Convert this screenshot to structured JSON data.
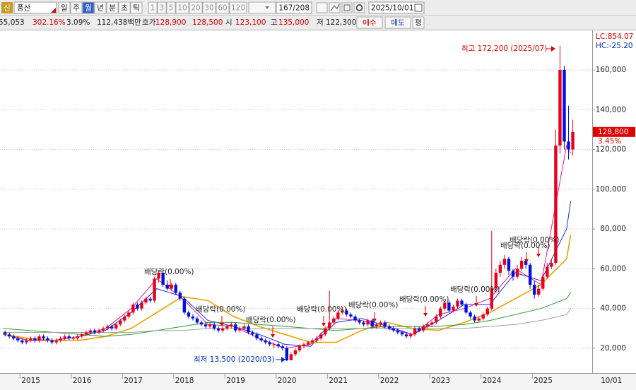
{
  "toolbar": {
    "badge": "신",
    "symbol": "풍산",
    "periods": [
      "일",
      "주",
      "월",
      "년",
      "분",
      "초",
      "틱"
    ],
    "selected_period": "월",
    "intervals": [
      "1",
      "3",
      "5",
      "10",
      "20",
      "30",
      "60",
      "120"
    ],
    "count": "167/208",
    "date": "2025/10/01"
  },
  "quote": {
    "volume": "55,053",
    "change_ratio": "302.16%",
    "turnover_rate": "3.09%",
    "amount": "112,438백만",
    "ask_label": "호가",
    "ask": "128,900",
    "bid": "128,500",
    "open_label": "시",
    "open": "123,100",
    "high_label": "고",
    "high": "135,000",
    "low_label": "저",
    "low": "122,300",
    "buy": "매수",
    "sell": "매도",
    "avg": "평"
  },
  "chart_data": {
    "type": "candlestick",
    "up_color": "#e8001c",
    "down_color": "#0010e0",
    "candles": {
      "open": [
        28000,
        27000,
        26000,
        25000,
        24000,
        23000,
        24000,
        25000,
        24000,
        26000,
        25000,
        24000,
        23000,
        24000,
        25000,
        26000,
        25000,
        25000,
        26000,
        27000,
        28000,
        29000,
        28000,
        29000,
        30000,
        31000,
        30000,
        32000,
        34000,
        36000,
        38000,
        42000,
        40000,
        43000,
        45000,
        44000,
        55000,
        58000,
        52000,
        50000,
        52000,
        48000,
        45000,
        38000,
        36000,
        35000,
        33000,
        32000,
        31000,
        32000,
        30000,
        29000,
        30000,
        31000,
        32000,
        29000,
        30000,
        31000,
        28000,
        27000,
        25000,
        24000,
        23000,
        22000,
        22000,
        21000,
        20000,
        14000,
        17000,
        19000,
        21000,
        22000,
        23000,
        24000,
        25000,
        27000,
        30000,
        33000,
        35000,
        38000,
        39000,
        37000,
        36000,
        34000,
        33000,
        32000,
        34000,
        31000,
        32000,
        33000,
        31000,
        30000,
        29000,
        28000,
        27000,
        26000,
        27000,
        30000,
        29000,
        31000,
        32000,
        33000,
        36000,
        40000,
        43000,
        39000,
        41000,
        44000,
        42000,
        38000,
        36000,
        34000,
        35000,
        37000,
        40000,
        50000,
        58000,
        62000,
        65000,
        59000,
        56000,
        60000,
        64000,
        62000,
        52000,
        47000,
        50000,
        56000,
        61000,
        63000,
        122000,
        160000,
        124000,
        120000
      ],
      "high": [
        29000,
        28000,
        27000,
        26000,
        25000,
        25000,
        26000,
        26000,
        27000,
        27000,
        26000,
        25000,
        25000,
        26000,
        27000,
        27000,
        26000,
        27000,
        28000,
        29000,
        30000,
        30000,
        30000,
        31000,
        32000,
        32000,
        33000,
        35000,
        37000,
        39000,
        43000,
        43000,
        44000,
        46000,
        46000,
        56000,
        59000,
        59000,
        54000,
        53000,
        53000,
        49000,
        46000,
        39000,
        37000,
        36000,
        34000,
        33000,
        33000,
        33000,
        31000,
        31000,
        32000,
        33000,
        33000,
        31000,
        32000,
        32000,
        29000,
        28000,
        26000,
        25000,
        24000,
        23000,
        23000,
        22000,
        21000,
        18000,
        20000,
        22000,
        23000,
        24000,
        25000,
        26000,
        28000,
        31000,
        49000,
        36000,
        39000,
        41000,
        40000,
        38000,
        37000,
        35000,
        34000,
        35000,
        35000,
        33000,
        34000,
        34000,
        32000,
        31000,
        30000,
        29000,
        28000,
        28000,
        31000,
        31000,
        32000,
        33000,
        34000,
        37000,
        41000,
        44000,
        44000,
        42000,
        45000,
        45000,
        43000,
        39000,
        37000,
        36000,
        38000,
        41000,
        79000,
        60000,
        64000,
        67000,
        66000,
        60000,
        62000,
        66000,
        65000,
        63000,
        54000,
        52000,
        58000,
        63000,
        65000,
        130000,
        172200,
        162000,
        142000,
        135000
      ],
      "low": [
        26000,
        25000,
        24000,
        23000,
        22000,
        22000,
        23000,
        23000,
        23000,
        24000,
        23000,
        22000,
        22000,
        23000,
        24000,
        24000,
        24000,
        24000,
        25000,
        26000,
        27000,
        27000,
        27000,
        28000,
        29000,
        29000,
        29000,
        31000,
        33000,
        35000,
        37000,
        39000,
        39000,
        42000,
        43000,
        43000,
        53000,
        51000,
        49000,
        49000,
        47000,
        44000,
        37000,
        35000,
        34000,
        32000,
        31000,
        30000,
        30000,
        29000,
        28000,
        28000,
        29000,
        30000,
        28000,
        28000,
        29000,
        27000,
        26000,
        24000,
        23000,
        22000,
        21000,
        20000,
        20000,
        19000,
        13500,
        14000,
        16000,
        18000,
        20000,
        21000,
        22000,
        23000,
        24000,
        26000,
        29000,
        32000,
        34000,
        37000,
        36000,
        35000,
        33000,
        32000,
        31000,
        31000,
        30000,
        30000,
        31000,
        30000,
        29000,
        28000,
        27000,
        26000,
        25000,
        25000,
        26000,
        28000,
        28000,
        30000,
        31000,
        32000,
        35000,
        39000,
        38000,
        38000,
        40000,
        41000,
        37000,
        35000,
        33000,
        33000,
        34000,
        36000,
        39000,
        48000,
        56000,
        60000,
        57000,
        54000,
        55000,
        59000,
        60000,
        50000,
        45000,
        46000,
        49000,
        55000,
        60000,
        62000,
        118000,
        120000,
        115000,
        117000
      ],
      "close": [
        27000,
        26000,
        25000,
        24000,
        23000,
        24000,
        25000,
        24000,
        26000,
        25000,
        24000,
        23000,
        24000,
        25000,
        26000,
        25000,
        25000,
        26000,
        27000,
        28000,
        29000,
        28000,
        29000,
        30000,
        31000,
        30000,
        32000,
        34000,
        36000,
        38000,
        42000,
        40000,
        43000,
        45000,
        44000,
        55000,
        58000,
        52000,
        50000,
        52000,
        48000,
        45000,
        38000,
        36000,
        35000,
        33000,
        32000,
        31000,
        32000,
        30000,
        29000,
        30000,
        31000,
        32000,
        29000,
        30000,
        31000,
        28000,
        27000,
        25000,
        24000,
        23000,
        22000,
        22000,
        21000,
        20000,
        14000,
        17000,
        19000,
        21000,
        22000,
        23000,
        24000,
        25000,
        27000,
        30000,
        33000,
        35000,
        38000,
        39000,
        37000,
        36000,
        34000,
        33000,
        32000,
        34000,
        31000,
        32000,
        33000,
        31000,
        30000,
        29000,
        28000,
        27000,
        26000,
        27000,
        30000,
        29000,
        31000,
        32000,
        33000,
        36000,
        40000,
        43000,
        39000,
        41000,
        44000,
        42000,
        38000,
        36000,
        34000,
        35000,
        37000,
        40000,
        50000,
        58000,
        62000,
        65000,
        59000,
        56000,
        60000,
        64000,
        62000,
        52000,
        47000,
        50000,
        56000,
        61000,
        63000,
        122000,
        160000,
        124000,
        120000,
        128800
      ]
    },
    "moving_averages": {
      "x": [
        2014.67,
        2015.17,
        2015.67,
        2016.17,
        2016.67,
        2017.17,
        2017.67,
        2018.17,
        2018.67,
        2019.17,
        2019.67,
        2020.17,
        2020.67,
        2021.17,
        2021.67,
        2022.17,
        2022.67,
        2023.17,
        2023.67,
        2024.17,
        2024.67,
        2025.17,
        2025.67,
        2025.75
      ],
      "series": [
        {
          "color": "#1e2ee0",
          "values": [
            27000,
            24000,
            24000,
            26000,
            29000,
            38000,
            50000,
            46000,
            34000,
            31000,
            27000,
            22000,
            21000,
            33000,
            35000,
            31000,
            27000,
            34000,
            42000,
            42000,
            58000,
            54000,
            80000,
            94000
          ]
        },
        {
          "color": "#e0208c",
          "values": [
            27000,
            24000,
            24000,
            26000,
            30000,
            40000,
            55000,
            45000,
            32000,
            31000,
            25000,
            20000,
            22000,
            35000,
            34000,
            30000,
            27000,
            37000,
            40000,
            45000,
            60000,
            52000,
            122000,
            118000
          ]
        },
        {
          "color": "#f0a000",
          "values": [
            27000,
            25000,
            24000,
            24000,
            26000,
            30000,
            38000,
            46000,
            44000,
            36000,
            31000,
            27000,
            23000,
            23000,
            29000,
            33000,
            30000,
            29000,
            33000,
            38000,
            45000,
            52000,
            65000,
            77000
          ]
        },
        {
          "color": "#2c9a2c",
          "values": [
            30000,
            29000,
            28000,
            27000,
            26000,
            27000,
            29000,
            31000,
            33000,
            33000,
            32000,
            31000,
            30000,
            29000,
            30000,
            31000,
            31000,
            31000,
            32000,
            34000,
            37000,
            40000,
            45000,
            48000
          ]
        },
        {
          "color": "#a0a0a0",
          "values": [
            28000,
            28000,
            28000,
            28000,
            28000,
            28000,
            29000,
            29000,
            30000,
            30000,
            30000,
            30000,
            30000,
            30000,
            30000,
            30000,
            30000,
            30000,
            30000,
            31000,
            32000,
            34000,
            37000,
            40000
          ]
        }
      ]
    },
    "xlim": [
      2014.61,
      2026.17
    ],
    "xticks": [
      2015,
      2016,
      2017,
      2018,
      2019,
      2020,
      2021,
      2022,
      2023,
      2024,
      2025
    ],
    "x_end_label": "10/01",
    "ylim": [
      7563,
      179545
    ],
    "yticks": [
      {
        "value": 20000,
        "label": "20,000"
      },
      {
        "value": 40000,
        "label": "40,000"
      },
      {
        "value": 60000,
        "label": "60,000"
      },
      {
        "value": 80000,
        "label": "80,000"
      },
      {
        "value": 100000,
        "label": "100,000"
      },
      {
        "value": 120000,
        "label": "120,000"
      },
      {
        "value": 140000,
        "label": "140,000"
      },
      {
        "value": 160000,
        "label": "160,000"
      }
    ],
    "grid": true,
    "indicators": [
      "LC:854.07",
      "HC:-25.20"
    ],
    "price_tag": {
      "value": 128800,
      "label": "128,800",
      "change": "3.45%"
    },
    "high_note": "최고 172,200 (2025/07)",
    "low_note": "최저 13,500 (2020/03)",
    "dividend_notes": [
      "배당락(0.00%)",
      "배당락(0.00%)",
      "배당락(0.00%)",
      "배당락(0.00%)",
      "배당락(0.00%)",
      "배당락(0.00%)",
      "배당락(0.00%)",
      "배당락(0.00%)",
      "배당락(0.00%)"
    ]
  }
}
